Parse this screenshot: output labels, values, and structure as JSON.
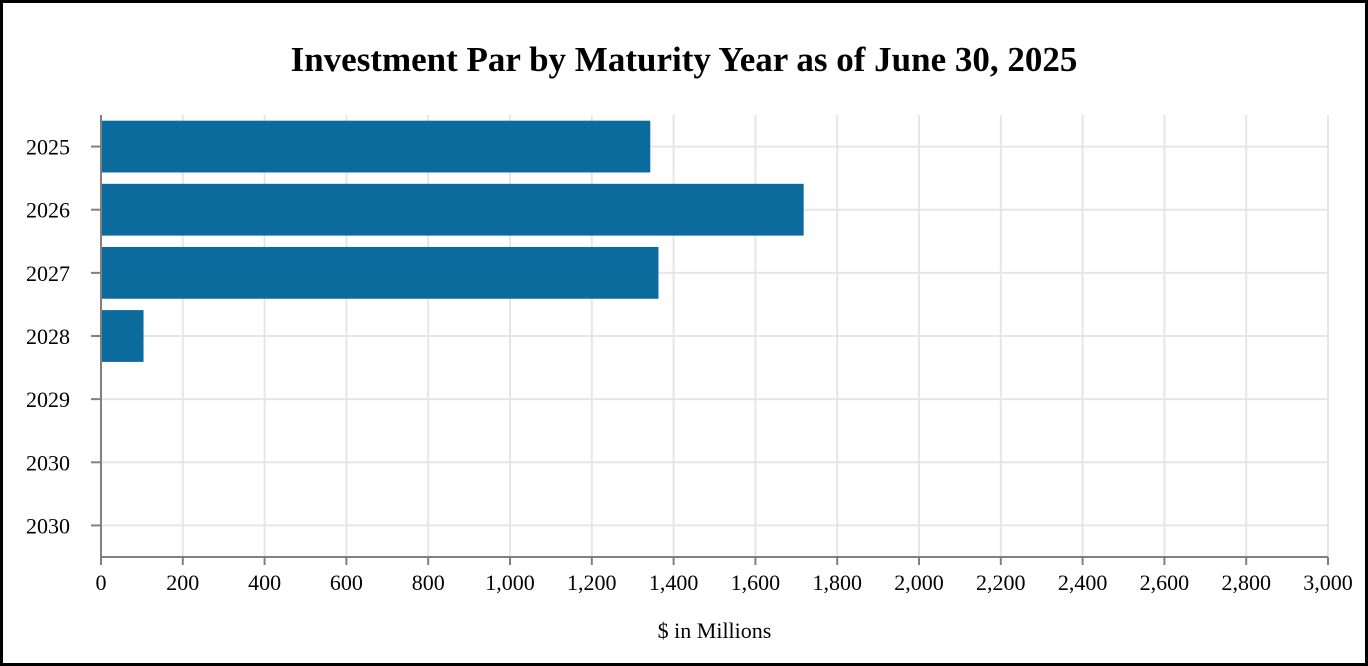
{
  "chart_data": {
    "type": "bar",
    "orientation": "horizontal",
    "title": "Investment Par by Maturity Year as of June 30, 2025",
    "xlabel": "$ in Millions",
    "ylabel": "",
    "categories": [
      "2025",
      "2026",
      "2027",
      "2028",
      "2029",
      "2030",
      "2030"
    ],
    "values": [
      1343,
      1718,
      1363,
      104,
      0,
      0,
      0
    ],
    "xlim": [
      0,
      3000
    ],
    "xticks": [
      "0",
      "200",
      "400",
      "600",
      "800",
      "1,000",
      "1,200",
      "1,400",
      "1,600",
      "1,800",
      "2,000",
      "2,200",
      "2,400",
      "2,600",
      "2,800",
      "3,000"
    ],
    "grid": true,
    "legend": "none",
    "bar_color": "#0a6b9c",
    "grid_color": "#e6e6e6",
    "axis_color": "#808080"
  }
}
